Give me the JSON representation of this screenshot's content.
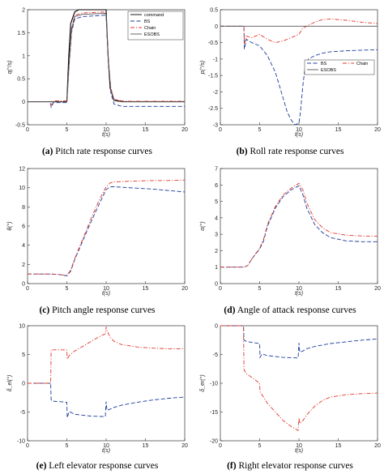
{
  "figure": {
    "panels": [
      {
        "letter": "(a)",
        "caption": "Pitch rate response curves",
        "ylabel": "q(°/s)",
        "xlabel": "t(s)"
      },
      {
        "letter": "(b)",
        "caption": "Roll rate response curves",
        "ylabel": "p(°/s)",
        "xlabel": "t(s)"
      },
      {
        "letter": "(c)",
        "caption": "Pitch angle response curves",
        "ylabel": "θ(°)",
        "xlabel": "t(s)"
      },
      {
        "letter": "(d)",
        "caption": "Angle of attack response curves",
        "ylabel": "α(°)",
        "xlabel": "t(s)"
      },
      {
        "letter": "(e)",
        "caption": "Left elevator response curves",
        "ylabel": "δ_el(°)",
        "xlabel": "t(s)"
      },
      {
        "letter": "(f)",
        "caption": "Right elevator response curves",
        "ylabel": "δ_er(°)",
        "xlabel": "t(s)"
      }
    ]
  },
  "chart_data": [
    {
      "type": "line",
      "title": "",
      "xlabel": "t(s)",
      "ylabel": "q(°/s)",
      "xlim": [
        0,
        20
      ],
      "ylim": [
        -0.5,
        2
      ],
      "xticks": [
        0,
        5,
        10,
        15,
        20
      ],
      "yticks": [
        -0.5,
        0,
        0.5,
        1,
        1.5,
        2
      ],
      "legend": {
        "position": "top-right",
        "entries": [
          "command",
          "BS",
          "Chain",
          "ESOBS"
        ]
      },
      "series": [
        {
          "name": "command",
          "color": "#000000",
          "style": "solid",
          "x": [
            0,
            5.0,
            5.25,
            5.5,
            6.0,
            6.5,
            7,
            9.9,
            10.0,
            10.25,
            10.5,
            11,
            12,
            13,
            20
          ],
          "y": [
            0,
            0,
            1.0,
            1.7,
            1.95,
            2.0,
            2.0,
            2.0,
            2.0,
            1.0,
            0.3,
            0.05,
            0,
            0,
            0
          ]
        },
        {
          "name": "BS",
          "color": "#1a3a9a",
          "style": "dashed",
          "x": [
            0,
            2.9,
            3.0,
            3.3,
            5.0,
            5.3,
            5.6,
            6.0,
            7,
            9.9,
            10.0,
            10.3,
            10.6,
            11,
            12,
            13,
            20
          ],
          "y": [
            0,
            0,
            -0.12,
            -0.02,
            -0.02,
            0.8,
            1.5,
            1.8,
            1.85,
            1.88,
            1.85,
            0.8,
            0.2,
            -0.05,
            -0.1,
            -0.1,
            -0.1
          ]
        },
        {
          "name": "Chain",
          "color": "#e0352b",
          "style": "dashdot",
          "x": [
            0,
            2.9,
            3.0,
            3.3,
            5.0,
            5.3,
            5.6,
            6.0,
            7,
            9.9,
            10.0,
            10.3,
            10.6,
            11,
            12,
            13,
            20
          ],
          "y": [
            0,
            0,
            -0.08,
            0.02,
            0.02,
            0.9,
            1.6,
            1.88,
            1.93,
            1.95,
            1.9,
            0.9,
            0.3,
            0.05,
            0.02,
            0.01,
            0.01
          ]
        },
        {
          "name": "ESOBS",
          "color": "#555555",
          "style": "solid",
          "x": [
            0,
            5.0,
            5.3,
            5.6,
            6.0,
            7,
            9.9,
            10.0,
            10.3,
            10.6,
            11,
            12,
            20
          ],
          "y": [
            0,
            0,
            0.85,
            1.55,
            1.85,
            1.9,
            1.92,
            1.88,
            0.85,
            0.25,
            0.02,
            0,
            0
          ]
        }
      ]
    },
    {
      "type": "line",
      "title": "",
      "xlabel": "t(s)",
      "ylabel": "p(°/s)",
      "xlim": [
        0,
        20
      ],
      "ylim": [
        -3,
        0.5
      ],
      "xticks": [
        0,
        5,
        10,
        15,
        20
      ],
      "yticks": [
        -3,
        -2.5,
        -2,
        -1.5,
        -1,
        -0.5,
        0,
        0.5
      ],
      "legend": {
        "position": "middle-right",
        "entries": [
          "BS",
          "Chain",
          "ESOBS"
        ]
      },
      "series": [
        {
          "name": "BS",
          "color": "#1a3a9a",
          "style": "dashed",
          "x": [
            0,
            3.0,
            3.05,
            3.3,
            4,
            5,
            6,
            7,
            7.5,
            8,
            8.5,
            9,
            9.5,
            10,
            10.2,
            10.5,
            10.8,
            11.2,
            12,
            13,
            14,
            16,
            18,
            20
          ],
          "y": [
            0,
            0,
            -0.7,
            -0.4,
            -0.5,
            -0.6,
            -0.9,
            -1.4,
            -1.8,
            -2.2,
            -2.6,
            -2.85,
            -3.0,
            -2.95,
            -2.6,
            -1.8,
            -1.2,
            -1.0,
            -0.9,
            -0.82,
            -0.78,
            -0.75,
            -0.73,
            -0.72
          ]
        },
        {
          "name": "Chain",
          "color": "#e0352b",
          "style": "dashdot",
          "x": [
            0,
            3.0,
            3.05,
            3.3,
            4,
            5,
            6,
            7,
            8,
            9,
            10,
            10.5,
            11,
            12,
            13,
            14,
            16,
            18,
            20
          ],
          "y": [
            0,
            0,
            -0.55,
            -0.3,
            -0.35,
            -0.25,
            -0.4,
            -0.5,
            -0.45,
            -0.35,
            -0.25,
            -0.05,
            0.0,
            0.12,
            0.2,
            0.22,
            0.18,
            0.12,
            0.08
          ]
        },
        {
          "name": "ESOBS",
          "color": "#555555",
          "style": "solid",
          "x": [
            0,
            20
          ],
          "y": [
            0,
            0
          ]
        }
      ]
    },
    {
      "type": "line",
      "title": "",
      "xlabel": "t(s)",
      "ylabel": "θ(°)",
      "xlim": [
        0,
        20
      ],
      "ylim": [
        0,
        12
      ],
      "xticks": [
        0,
        5,
        10,
        15,
        20
      ],
      "yticks": [
        0,
        2,
        4,
        6,
        8,
        10,
        12
      ],
      "series": [
        {
          "name": "BS",
          "color": "#1a3a9a",
          "style": "dashed",
          "x": [
            0,
            3,
            4,
            5,
            5.5,
            6,
            7,
            8,
            9,
            10,
            10.5,
            11,
            12,
            14,
            16,
            18,
            20
          ],
          "y": [
            1.0,
            1.0,
            0.95,
            0.8,
            1.3,
            2.5,
            4.4,
            6.3,
            8.1,
            9.8,
            10.1,
            10.1,
            10.05,
            9.95,
            9.85,
            9.7,
            9.55
          ]
        },
        {
          "name": "Chain",
          "color": "#e0352b",
          "style": "dashdot",
          "x": [
            0,
            3,
            4,
            5,
            5.5,
            6,
            7,
            8,
            9,
            10,
            10.5,
            11,
            12,
            14,
            16,
            18,
            20
          ],
          "y": [
            1.0,
            1.0,
            0.95,
            0.85,
            1.4,
            2.6,
            4.6,
            6.6,
            8.5,
            10.1,
            10.5,
            10.6,
            10.65,
            10.7,
            10.75,
            10.75,
            10.8
          ]
        }
      ]
    },
    {
      "type": "line",
      "title": "",
      "xlabel": "t(s)",
      "ylabel": "α(°)",
      "xlim": [
        0,
        20
      ],
      "ylim": [
        0,
        7
      ],
      "xticks": [
        0,
        5,
        10,
        15,
        20
      ],
      "yticks": [
        0,
        1,
        2,
        3,
        4,
        5,
        6,
        7
      ],
      "series": [
        {
          "name": "BS",
          "color": "#1a3a9a",
          "style": "dashed",
          "x": [
            0,
            3,
            3.5,
            4,
            5,
            5.5,
            6,
            7,
            8,
            9,
            10,
            10.5,
            11,
            12,
            13,
            14,
            16,
            18,
            20
          ],
          "y": [
            1.0,
            1.0,
            1.1,
            1.5,
            2.1,
            2.6,
            3.5,
            4.6,
            5.3,
            5.7,
            5.95,
            5.4,
            4.6,
            3.6,
            3.1,
            2.8,
            2.6,
            2.55,
            2.55
          ]
        },
        {
          "name": "Chain",
          "color": "#e0352b",
          "style": "dashdot",
          "x": [
            0,
            3,
            3.5,
            4,
            5,
            5.5,
            6,
            7,
            8,
            9,
            10,
            10.5,
            11,
            12,
            13,
            14,
            16,
            18,
            20
          ],
          "y": [
            1.0,
            1.0,
            1.1,
            1.5,
            2.15,
            2.7,
            3.6,
            4.7,
            5.4,
            5.8,
            6.1,
            5.7,
            4.9,
            3.9,
            3.4,
            3.1,
            2.95,
            2.9,
            2.88
          ]
        }
      ]
    },
    {
      "type": "line",
      "title": "",
      "xlabel": "t(s)",
      "ylabel": "δ_el(°)",
      "xlim": [
        0,
        20
      ],
      "ylim": [
        -10,
        10
      ],
      "xticks": [
        0,
        5,
        10,
        15,
        20
      ],
      "yticks": [
        -10,
        -5,
        0,
        5,
        10
      ],
      "series": [
        {
          "name": "BS",
          "color": "#1a3a9a",
          "style": "dashed",
          "x": [
            0,
            2.95,
            3.0,
            3.1,
            4,
            5.0,
            5.05,
            5.3,
            6,
            8,
            9.9,
            10.0,
            10.1,
            10.5,
            11,
            12,
            14,
            16,
            18,
            20
          ],
          "y": [
            0,
            0,
            -2.8,
            -3.1,
            -3.2,
            -3.3,
            -6.0,
            -4.9,
            -5.4,
            -5.7,
            -5.8,
            -3.2,
            -4.7,
            -4.5,
            -4.2,
            -3.8,
            -3.3,
            -2.9,
            -2.6,
            -2.4
          ]
        },
        {
          "name": "Chain",
          "color": "#e0352b",
          "style": "dashdot",
          "x": [
            0,
            2.95,
            3.0,
            5.0,
            5.05,
            5.3,
            6,
            7,
            8,
            9,
            9.9,
            10.0,
            10.1,
            10.5,
            11,
            12,
            14,
            16,
            18,
            20
          ],
          "y": [
            0,
            0,
            5.8,
            5.8,
            4.2,
            4.8,
            5.6,
            6.4,
            7.2,
            8.0,
            8.6,
            9.8,
            9.2,
            8.0,
            7.3,
            6.7,
            6.3,
            6.1,
            6.0,
            6.0
          ]
        }
      ]
    },
    {
      "type": "line",
      "title": "",
      "xlabel": "t(s)",
      "ylabel": "δ_er(°)",
      "xlim": [
        0,
        20
      ],
      "ylim": [
        -20,
        0
      ],
      "xticks": [
        0,
        5,
        10,
        15,
        20
      ],
      "yticks": [
        -20,
        -15,
        -10,
        -5,
        0
      ],
      "series": [
        {
          "name": "BS",
          "color": "#1a3a9a",
          "style": "dashed",
          "x": [
            0,
            2.95,
            3.0,
            3.3,
            4,
            5.0,
            5.05,
            5.3,
            6,
            8,
            9.9,
            10.0,
            10.1,
            10.5,
            11,
            12,
            14,
            16,
            18,
            20
          ],
          "y": [
            0,
            0,
            -2.5,
            -2.7,
            -2.9,
            -3.1,
            -5.5,
            -4.9,
            -5.2,
            -5.5,
            -5.6,
            -3.0,
            -4.6,
            -4.4,
            -4.0,
            -3.6,
            -3.1,
            -2.8,
            -2.5,
            -2.3
          ]
        },
        {
          "name": "Chain",
          "color": "#e0352b",
          "style": "dashdot",
          "x": [
            0,
            2.95,
            3.0,
            3.2,
            4,
            5.0,
            5.05,
            5.3,
            6,
            7,
            8,
            9,
            9.9,
            10.0,
            10.1,
            10.5,
            11,
            12,
            13,
            14,
            16,
            18,
            20
          ],
          "y": [
            0,
            0,
            -7.5,
            -8.2,
            -9.0,
            -10.0,
            -11.5,
            -12.0,
            -13.5,
            -15.0,
            -16.5,
            -17.5,
            -18.2,
            -16.0,
            -17.0,
            -16.5,
            -15.5,
            -14.0,
            -13.0,
            -12.4,
            -12.0,
            -11.8,
            -11.7
          ]
        }
      ]
    }
  ]
}
